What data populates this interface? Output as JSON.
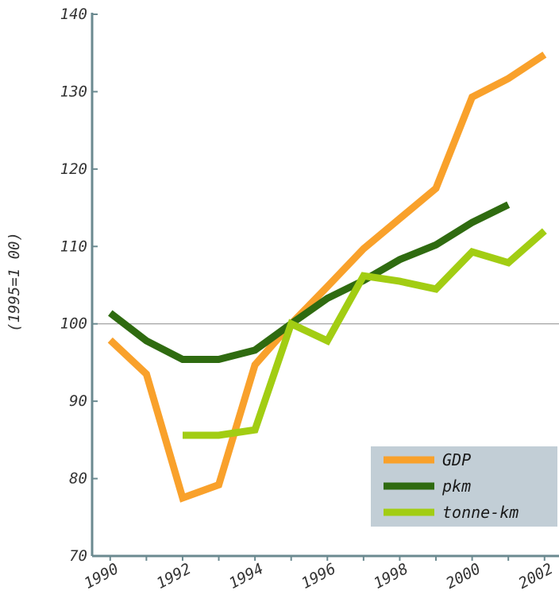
{
  "chart_data": {
    "type": "line",
    "title": "",
    "xlabel": "",
    "ylabel": "(1995=1 00)",
    "x_ticks": [
      "1990",
      "1992",
      "1994",
      "1996",
      "1998",
      "2000",
      "2002"
    ],
    "y_ticks": [
      "70",
      "80",
      "90",
      "100",
      "110",
      "120",
      "130",
      "140"
    ],
    "xlim": [
      1989.5,
      2002.4
    ],
    "ylim": [
      70,
      140
    ],
    "reference_line": 100,
    "grid": false,
    "legend_position": "bottom-right",
    "x": [
      1990,
      1991,
      1992,
      1993,
      1994,
      1995,
      1996,
      1997,
      1998,
      1999,
      2000,
      2001,
      2002
    ],
    "series": [
      {
        "name": "GDP",
        "color": "#f9a12b",
        "values": [
          97.9,
          93.5,
          77.5,
          79.2,
          94.7,
          100,
          104.8,
          109.7,
          113.6,
          117.5,
          129.3,
          131.7,
          134.8
        ]
      },
      {
        "name": "pkm",
        "color": "#2f6b10",
        "values": [
          101.4,
          97.8,
          95.4,
          95.4,
          96.6,
          100,
          103.3,
          105.6,
          108.3,
          110.2,
          113.1,
          115.4,
          null
        ]
      },
      {
        "name": "tonne-km",
        "color": "#a2cd13",
        "values": [
          null,
          null,
          85.6,
          85.6,
          86.3,
          100,
          97.8,
          106.2,
          105.5,
          104.5,
          109.3,
          107.9,
          112.0
        ]
      }
    ]
  }
}
